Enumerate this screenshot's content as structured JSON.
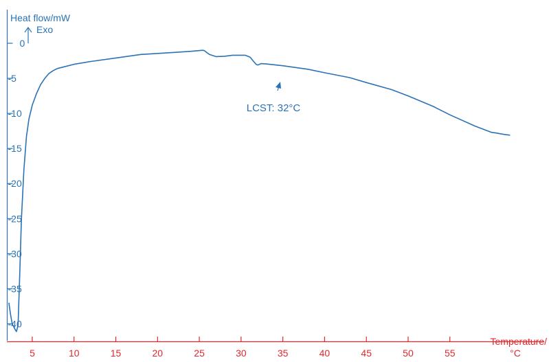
{
  "colors": {
    "axis_y": "#2a72b5",
    "axis_x": "#e3262d",
    "curve": "#2a72b5"
  },
  "chart_data": {
    "type": "line",
    "title": "",
    "ylabel": "Heat flow/mW",
    "ylabel_note": "Exo",
    "xlabel_line1": "Temperature/",
    "xlabel_line2": "°C",
    "xlim": [
      2.0,
      63.0
    ],
    "ylim": [
      -42.5,
      4.7
    ],
    "xticks": [
      5,
      10,
      15,
      20,
      25,
      30,
      35,
      40,
      45,
      50,
      55
    ],
    "xtick_labels": [
      "5",
      "10",
      "15",
      "20",
      "25",
      "30",
      "35",
      "40",
      "45",
      "50",
      "55"
    ],
    "yticks": [
      0,
      -5,
      -10,
      -15,
      -20,
      -25,
      -30,
      -35,
      -40
    ],
    "ytick_labels": [
      "0",
      "-5",
      "-10",
      "-15",
      "-20",
      "-25",
      "-30",
      "-35",
      "-40"
    ],
    "grid": false,
    "annotation": {
      "text": "LCST: 32°C",
      "x": 32.0,
      "y": -4.8
    },
    "series": [
      {
        "x": [
          2.2,
          2.4,
          2.6,
          2.9,
          3.1,
          3.3,
          3.5,
          3.7,
          4.0,
          4.3,
          4.6,
          5.0,
          5.5,
          6.0,
          6.5,
          7.0,
          7.5,
          8.0,
          9.0,
          10.0,
          12.0,
          15.0,
          18.0,
          20.0,
          22.0,
          24.0,
          25.4,
          25.6,
          26.2,
          27.0,
          28.0,
          29.0,
          30.5,
          31.1,
          31.5,
          31.8,
          32.0,
          32.4,
          33.0,
          35.0,
          38.0,
          40.0,
          43.0,
          45.0,
          48.0,
          50.0,
          53.0,
          55.0,
          58.0,
          60.0,
          60.6,
          61.0,
          61.5,
          62.2
        ],
        "y": [
          -37.0,
          -38.7,
          -40.0,
          -40.7,
          -41.1,
          -40.2,
          -33.0,
          -25.0,
          -18.0,
          -13.3,
          -10.8,
          -8.8,
          -7.2,
          -5.9,
          -5.0,
          -4.3,
          -3.9,
          -3.6,
          -3.3,
          -3.0,
          -2.6,
          -2.1,
          -1.6,
          -1.45,
          -1.3,
          -1.15,
          -1.0,
          -1.05,
          -1.6,
          -1.9,
          -1.85,
          -1.7,
          -1.7,
          -2.0,
          -2.6,
          -3.0,
          -3.1,
          -2.9,
          -2.95,
          -3.2,
          -3.7,
          -4.2,
          -4.9,
          -5.6,
          -6.6,
          -7.5,
          -9.0,
          -10.2,
          -11.8,
          -12.7,
          -12.8,
          -12.9,
          -13.0,
          -13.1
        ]
      }
    ]
  }
}
